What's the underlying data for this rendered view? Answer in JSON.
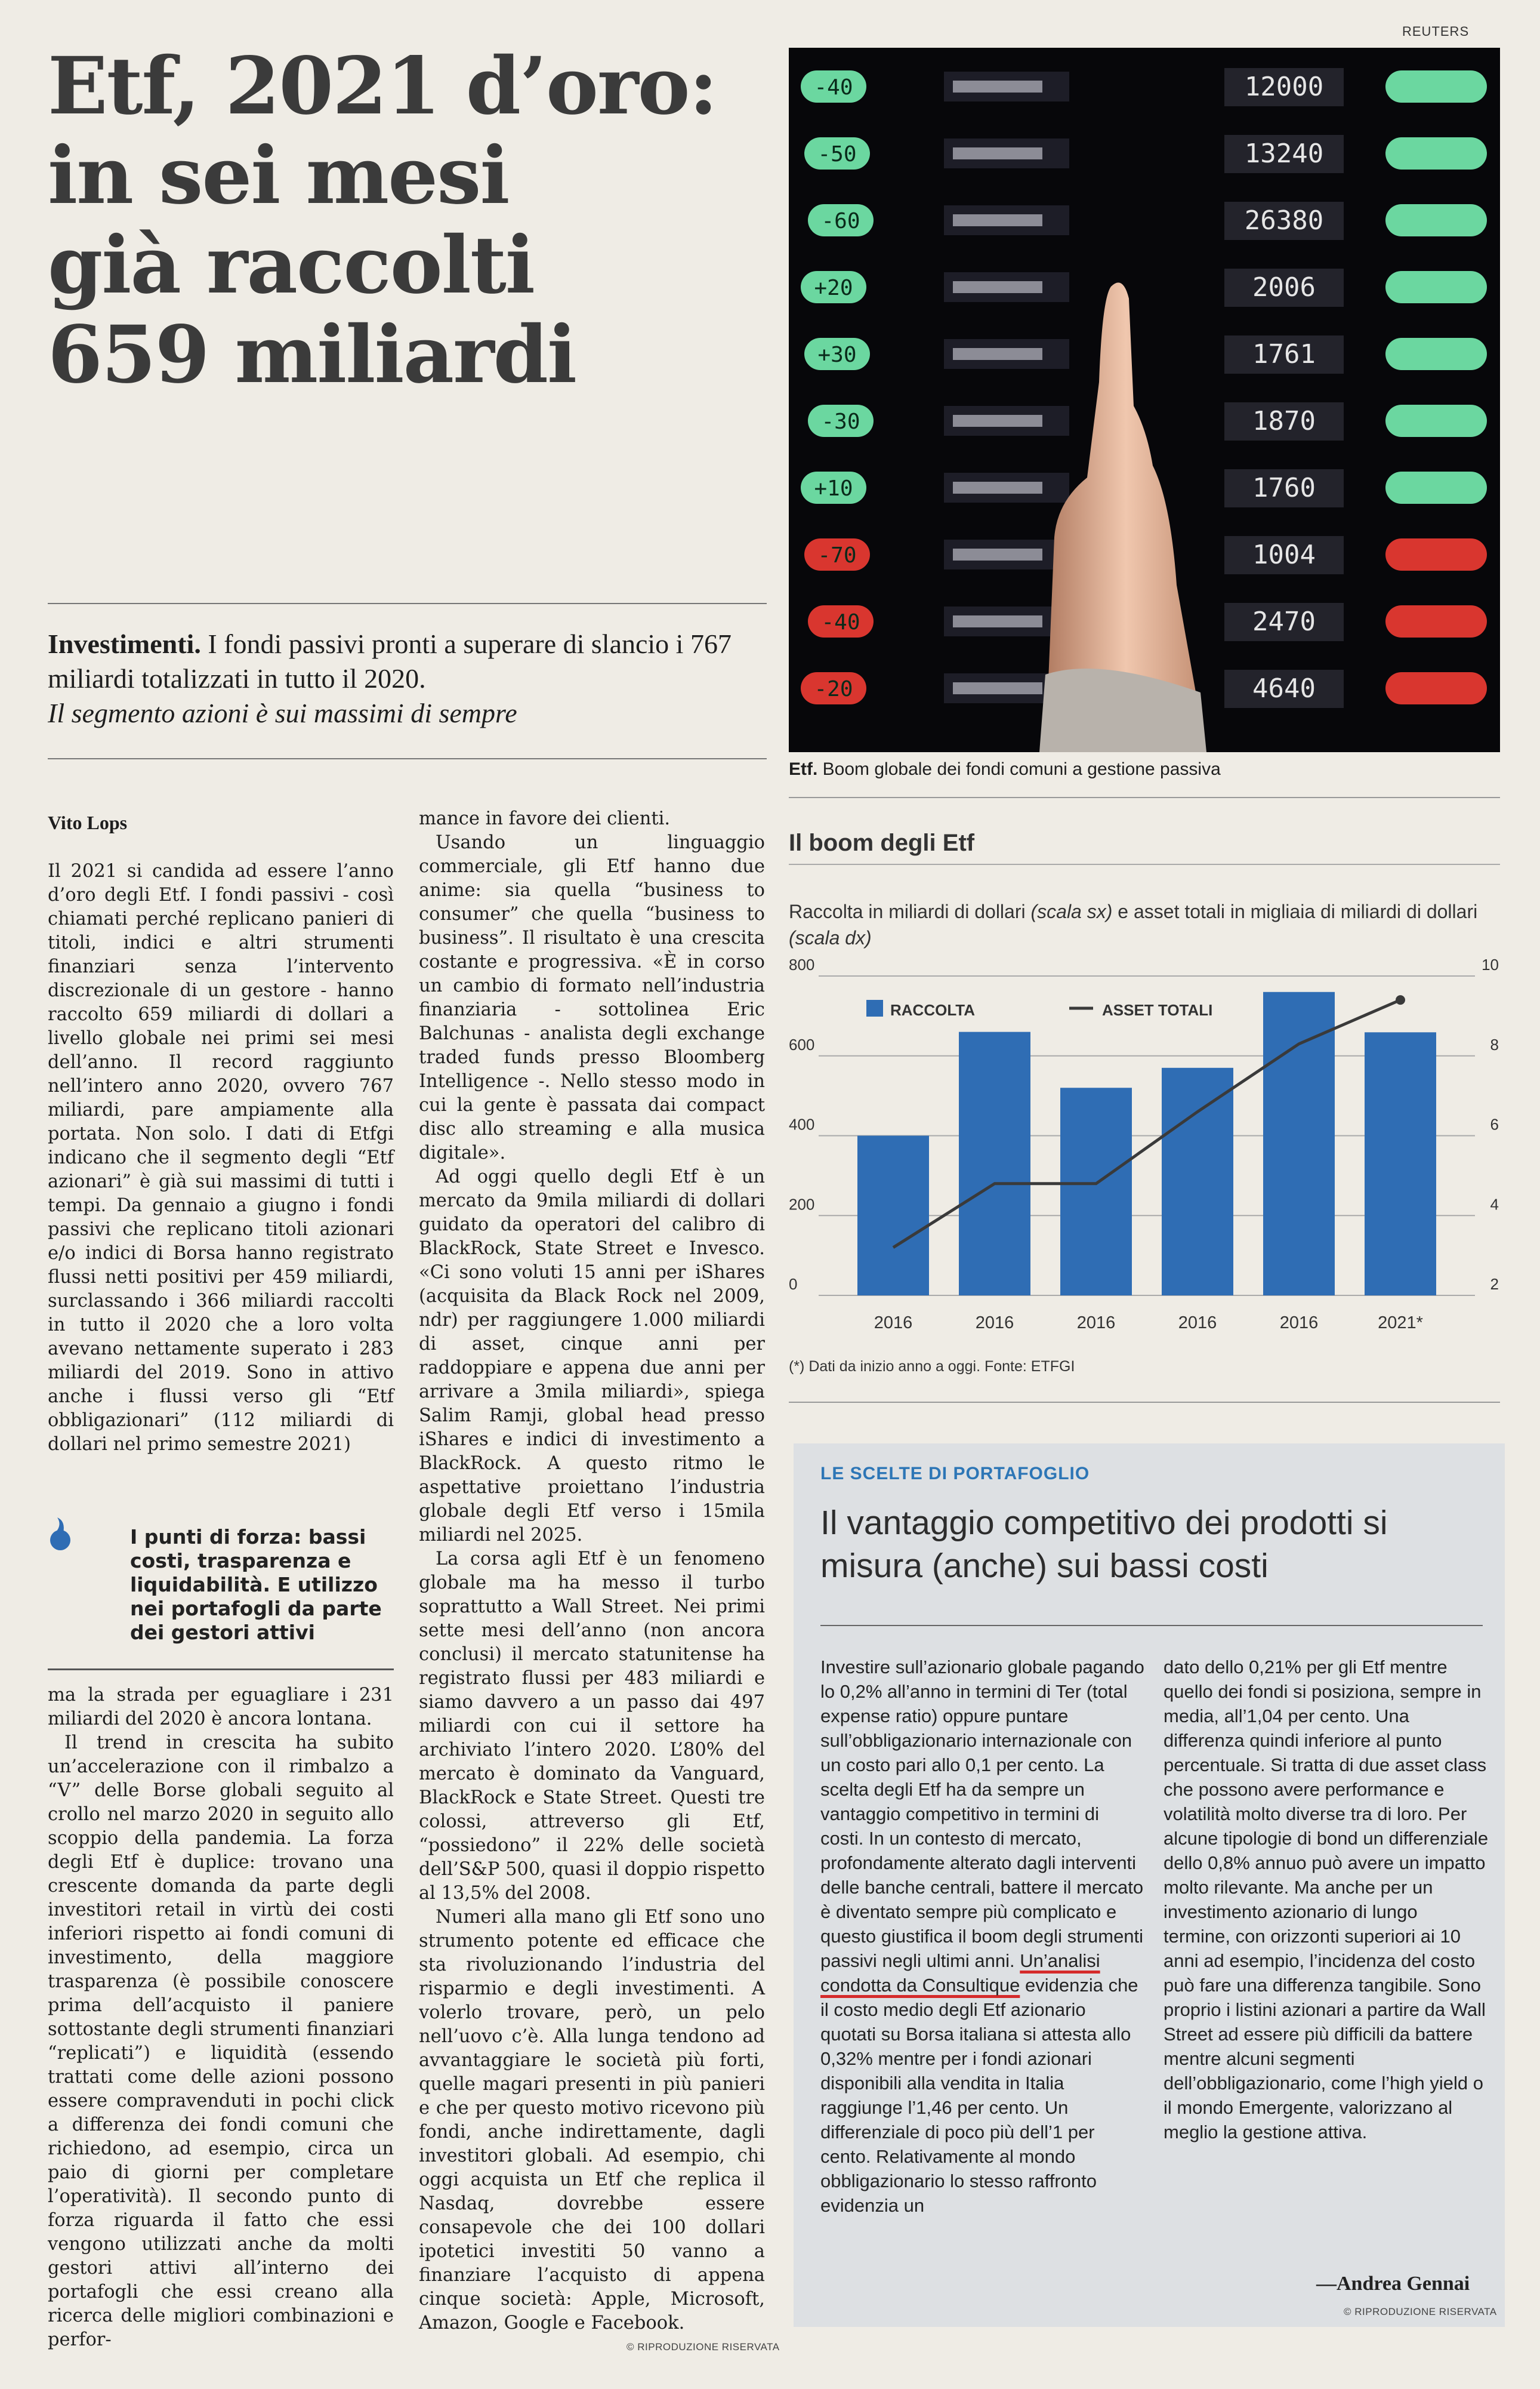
{
  "credit": "REUTERS",
  "headline": [
    "Etf, 2021 d’oro:",
    "in sei mesi",
    "già raccolti",
    "659 miliardi"
  ],
  "standfirst": {
    "lead": "Investimenti.",
    "text": " I fondi passivi pronti a superare di slancio i 767 miliardi totalizzati in tutto il 2020.",
    "italic": "Il segmento azioni è sui massimi di sempre"
  },
  "photo": {
    "caption_label": "Etf.",
    "caption_text": " Boom globale dei fondi comuni a gestione passiva",
    "board_numbers": [
      "12000",
      "13240",
      "26380",
      "2006",
      "1761",
      "1870",
      "1760",
      "1004",
      "2470",
      "4640"
    ],
    "board_deltas": [
      "-40",
      "-50",
      "-60",
      "+20",
      "+30",
      "-30",
      "+10",
      "-70",
      "-40",
      "-20"
    ]
  },
  "article": {
    "author": "Vito Lops",
    "col1a": [
      "Il 2021 si candida ad essere l’anno d’oro degli Etf. I fondi passivi - così chiamati perché replicano panieri di titoli, indici e altri strumenti finanziari senza l’intervento discrezionale di un gestore - hanno raccolto 659 miliardi di dollari a livello globale nei primi sei mesi dell’anno. Il record raggiunto nell’intero anno 2020, ovvero 767 miliardi, pare ampiamente alla portata. Non solo. I dati di Etfgi indicano che il segmento degli “Etf azionari” è già sui massimi di tutti i tempi. Da gennaio a giugno i fondi passivi che replicano titoli azionari e/o indici di Borsa hanno registrato flussi netti positivi per 459 miliardi, surclassando i 366 miliardi raccolti in tutto il 2020 che a loro volta avevano nettamente superato i 283 miliardi del 2019. Sono in attivo anche i flussi verso gli “Etf obbligazionari” (112 miliardi di dollari nel primo semestre 2021)"
    ],
    "pullquote": "I punti di forza: bassi costi, trasparenza e liquidabilità. E utilizzo nei portafogli da parte dei gestori attivi",
    "col1b": [
      "ma la strada per eguagliare i 231 miliardi del 2020 è ancora lontana.",
      "Il trend in crescita ha subito un’accelerazione con il rimbalzo a “V” delle Borse globali seguito al crollo nel marzo 2020 in seguito allo scoppio della pandemia. La forza degli Etf è duplice: trovano una crescente domanda da parte degli investitori retail in virtù dei costi inferiori rispetto ai fondi comuni di investimento, della maggiore trasparenza (è possibile conoscere prima dell’acquisto il paniere sottostante degli strumenti finanziari “replicati”) e liquidità (essendo trattati come delle azioni possono essere compravenduti in pochi click a differenza dei fondi comuni che richiedono, ad esempio, circa un paio di giorni per completare l’operatività). Il secondo punto di forza riguarda il fatto che essi vengono utilizzati anche da molti gestori attivi all’interno dei portafogli che essi creano alla ricerca delle migliori combinazioni e perfor-"
    ],
    "col2": [
      "mance in favore dei clienti.",
      "Usando un linguaggio commerciale, gli Etf hanno due anime: sia quella “business to consumer” che quella “business to business”. Il risultato è una crescita costante e progressiva. «È in corso un cambio di formato nell’industria finanziaria - sottolinea Eric Balchunas - analista degli exchange traded funds presso Bloomberg Intelligence -. Nello stesso modo in cui la gente è passata dai compact disc allo streaming e alla musica digitale».",
      "Ad oggi quello degli Etf è un mercato da 9mila miliardi di dollari guidato da operatori del calibro di BlackRock, State Street e Invesco. «Ci sono voluti 15 anni per iShares (acquisita da Black Rock nel 2009, ndr) per raggiungere 1.000 miliardi di asset, cinque anni per raddoppiare e appena due anni per arrivare a 3mila miliardi», spiega Salim Ramji, global head presso iShares e indici di investimento a BlackRock. A questo ritmo le aspettative proiettano l’industria globale degli Etf verso i 15mila miliardi nel 2025.",
      "La corsa agli Etf è un fenomeno globale ma ha messo il turbo soprattutto a Wall Street. Nei primi sette mesi dell’anno (non ancora conclusi) il mercato statunitense ha registrato flussi per 483 miliardi e siamo davvero a un passo dai 497 miliardi con cui il settore ha archiviato l’intero 2020. L’80% del mercato è dominato da Vanguard, BlackRock e State Street. Questi tre colossi, attreverso gli Etf, “possiedono” il 22% delle società dell’S&P 500, quasi il doppio rispetto al 13,5% del 2008.",
      "Numeri alla mano gli Etf sono uno strumento potente ed efficace che sta rivoluzionando l’industria del risparmio e degli investimenti. A volerlo trovare, però, un pelo nell’uovo c’è. Alla lunga tendono ad avvantaggiare le società più forti, quelle magari presenti in più panieri e che per questo motivo ricevono più fondi, anche indirettamente, dagli investitori globali. Ad esempio, chi oggi acquista un Etf che replica il Nasdaq, dovrebbe essere consapevole che dei 100 dollari ipotetici investiti 50 vanno a finanziare l’acquisto di appena cinque società: Apple, Microsoft, Amazon, Google e Facebook."
    ],
    "riproduzione": "© RIPRODUZIONE RISERVATA"
  },
  "chart": {
    "title": "Il boom degli Etf",
    "subtitle_a": "Raccolta in miliardi di dollari ",
    "subtitle_b": "(scala sx)",
    "subtitle_c": " e asset totali in migliaia di miliardi di dollari ",
    "subtitle_d": "(scala dx)",
    "footnote": "(*) Dati da inizio anno a oggi. Fonte: ETFGI"
  },
  "chart_data": {
    "type": "bar",
    "categories": [
      "2016",
      "2016",
      "2016",
      "2016",
      "2016",
      "2021*"
    ],
    "series": [
      {
        "name": "RACCOLTA",
        "type": "bar",
        "axis": "left",
        "values": [
          400,
          660,
          520,
          570,
          760,
          659
        ]
      },
      {
        "name": "ASSET TOTALI",
        "type": "line",
        "axis": "right",
        "values": [
          3.2,
          4.8,
          4.8,
          6.6,
          8.3,
          9.4
        ]
      }
    ],
    "ylim_left": [
      0,
      800
    ],
    "yticks_left": [
      0,
      200,
      400,
      600,
      800
    ],
    "ylim_right": [
      2,
      10
    ],
    "yticks_right": [
      2,
      4,
      6,
      8,
      10
    ],
    "colors": {
      "bar": "#2f6db4",
      "line": "#3a3a3a"
    },
    "legend_placement": "top-left",
    "grid": "horizontal"
  },
  "box": {
    "kicker": "LE SCELTE DI PORTAFOGLIO",
    "title": "Il vantaggio competitivo dei prodotti si misura (anche) sui bassi costi",
    "col1_before": "Investire sull’azionario globale pagando lo 0,2% all’anno in termini di Ter (total expense ratio) oppure puntare sull’obbligazionario internazionale con un costo pari allo 0,1 per cento. La scelta degli Etf ha da sempre un vantaggio competitivo in termini di costi. In un contesto di mercato, profondamente alterato dagli interventi delle banche centrali, battere il mercato è diventato sempre più complicato e questo giustifica il boom degli strumenti passivi negli ultimi anni. ",
    "col1_underlined": "Un’analisi condotta da Consultique",
    "col1_after": " evidenzia che il costo medio degli Etf azionario quotati su Borsa italiana si attesta allo 0,32% mentre per i fondi azionari disponibili alla vendita in Italia raggiunge l’1,46 per cento. Un differenziale di poco più dell’1 per cento. Relativamente al mondo obbligazionario lo stesso raffronto evidenzia un",
    "col2": "dato dello 0,21% per gli Etf mentre quello dei fondi si posiziona, sempre in media, all’1,04 per cento. Una differenza quindi inferiore al punto percentuale. Si tratta di due asset class che possono avere performance e volatilità molto diverse tra di loro. Per alcune tipologie di bond un differenziale dello 0,8% annuo può avere un impatto molto rilevante. Ma anche per un investimento azionario di lungo termine, con orizzonti superiori ai 10 anni ad esempio, l’incidenza del costo può fare una differenza tangibile. Sono proprio i listini azionari a partire da Wall Street ad essere più difficili da battere mentre alcuni segmenti dell’obbligazionario, come l’high yield o il mondo Emergente, valorizzano al meglio la gestione attiva.",
    "author": "—Andrea Gennai"
  }
}
